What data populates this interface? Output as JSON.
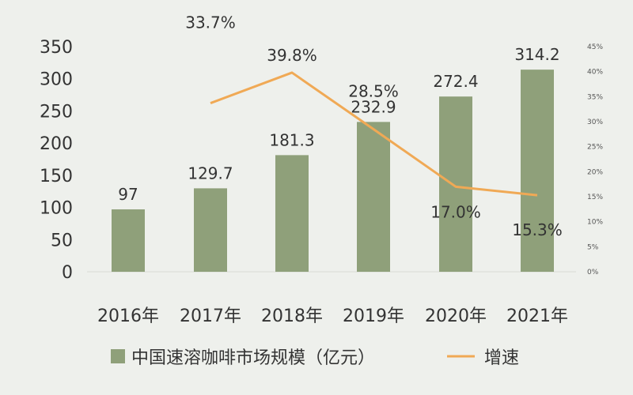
{
  "chart_data": {
    "type": "bar",
    "categories": [
      "2016年",
      "2017年",
      "2018年",
      "2019年",
      "2020年",
      "2021年"
    ],
    "series": [
      {
        "name": "中国速溶咖啡市场规模（亿元）",
        "type": "bar",
        "axis": "left",
        "values": [
          97,
          129.7,
          181.3,
          232.9,
          272.4,
          314.2
        ],
        "labels": [
          "97",
          "129.7",
          "181.3",
          "232.9",
          "272.4",
          "314.2"
        ]
      },
      {
        "name": "增速",
        "type": "line",
        "axis": "right",
        "values": [
          null,
          33.7,
          39.8,
          28.5,
          17.0,
          15.3
        ],
        "labels": [
          "",
          "33.7%",
          "39.8%",
          "28.5%",
          "17.0%",
          "15.3%"
        ]
      }
    ],
    "y_left": {
      "min": 0,
      "max": 350,
      "ticks": [
        "0",
        "50",
        "100",
        "150",
        "200",
        "250",
        "300",
        "350"
      ]
    },
    "y_right": {
      "min": 0,
      "max": 45,
      "ticks": [
        "0%",
        "5%",
        "10%",
        "15%",
        "20%",
        "25%",
        "30%",
        "35%",
        "40%",
        "45%"
      ]
    },
    "legend": {
      "position": "bottom",
      "bar_label": "中国速溶咖啡市场规模（亿元）",
      "line_label": "增速"
    },
    "colors": {
      "bar": "#8fa07a",
      "line": "#f0a955",
      "background": "#eef0ec"
    },
    "grid": false
  }
}
